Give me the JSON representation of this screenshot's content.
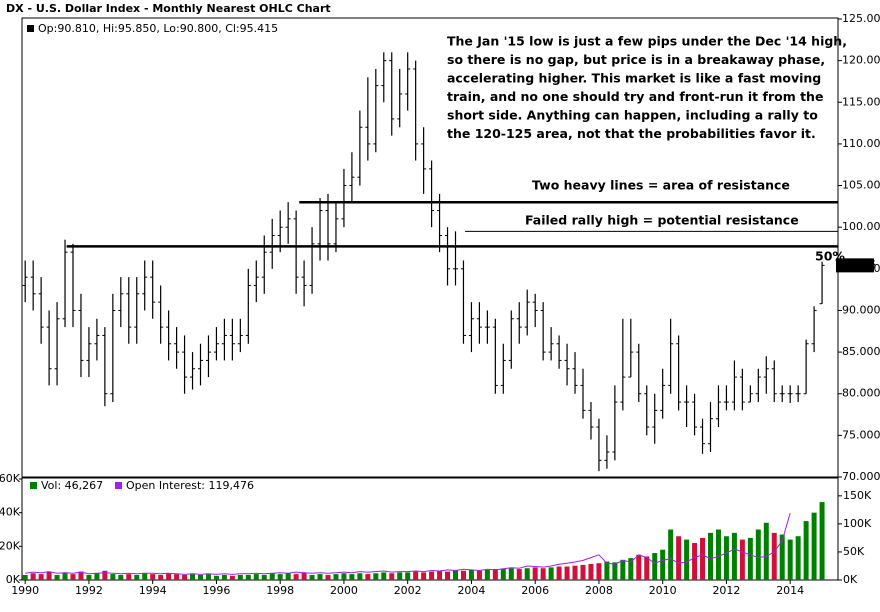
{
  "chart_data": [
    {
      "type": "ohlc",
      "title": "DX - U.S. Dollar Index - Monthly Nearest OHLC Chart",
      "legend": "Op:90.810, Hi:95.850, Lo:90.800, Cl:95.415",
      "color": "#000000",
      "x": [
        1990,
        1990.25,
        1990.5,
        1990.75,
        1991,
        1991.25,
        1991.5,
        1991.75,
        1992,
        1992.25,
        1992.5,
        1992.75,
        1993,
        1993.25,
        1993.5,
        1993.75,
        1994,
        1994.25,
        1994.5,
        1994.75,
        1995,
        1995.25,
        1995.5,
        1995.75,
        1996,
        1996.25,
        1996.5,
        1996.75,
        1997,
        1997.25,
        1997.5,
        1997.75,
        1998,
        1998.25,
        1998.5,
        1998.75,
        1999,
        1999.25,
        1999.5,
        1999.75,
        2000,
        2000.25,
        2000.5,
        2000.75,
        2001,
        2001.25,
        2001.5,
        2001.75,
        2002,
        2002.25,
        2002.5,
        2002.75,
        2003,
        2003.25,
        2003.5,
        2003.75,
        2004,
        2004.25,
        2004.5,
        2004.75,
        2005,
        2005.25,
        2005.5,
        2005.75,
        2006,
        2006.25,
        2006.5,
        2006.75,
        2007,
        2007.25,
        2007.5,
        2007.75,
        2008,
        2008.25,
        2008.5,
        2008.75,
        2009,
        2009.25,
        2009.5,
        2009.75,
        2010,
        2010.25,
        2010.5,
        2010.75,
        2011,
        2011.25,
        2011.5,
        2011.75,
        2012,
        2012.25,
        2012.5,
        2012.75,
        2013,
        2013.25,
        2013.5,
        2013.75,
        2014,
        2014.25,
        2014.5,
        2014.75,
        2015
      ],
      "open": [
        93,
        94,
        92,
        88,
        83,
        89,
        97,
        90,
        84,
        86,
        87,
        80,
        90,
        92,
        88,
        92,
        94,
        91,
        88,
        86,
        85,
        82,
        83,
        84,
        85,
        86,
        87,
        86,
        87,
        93,
        94,
        97,
        99,
        100,
        101,
        94,
        93,
        98,
        102,
        98,
        101,
        105,
        106,
        112,
        110,
        117,
        120,
        113,
        116,
        119,
        110,
        107,
        102,
        99,
        95,
        95,
        87,
        89,
        88,
        88,
        81,
        84,
        89,
        88,
        91,
        90,
        85,
        86,
        84,
        83,
        81,
        78,
        76,
        72,
        73,
        79,
        82,
        85,
        80,
        76,
        78,
        81,
        86,
        79,
        79,
        76,
        74,
        77,
        79,
        79,
        82,
        79,
        80,
        82,
        83,
        80,
        80,
        80,
        80,
        86,
        90.81
      ],
      "high": [
        96,
        96,
        94,
        90,
        91,
        98.5,
        98,
        92,
        88,
        89,
        88,
        92,
        94,
        94,
        94,
        96,
        96,
        93,
        90,
        88,
        87,
        85,
        86,
        87,
        88,
        89,
        89,
        89,
        95,
        96,
        99,
        101,
        102,
        103,
        102,
        96,
        100,
        103.5,
        104,
        103,
        107,
        109,
        114,
        118,
        119,
        121,
        121,
        119,
        121,
        120,
        112,
        108,
        104,
        100,
        99.5,
        96,
        91,
        91,
        90,
        89,
        86,
        90,
        91,
        92.5,
        92,
        91,
        88,
        87,
        86,
        85,
        83,
        79,
        77,
        75,
        81,
        89,
        89,
        86,
        81,
        80,
        83,
        89,
        87,
        81,
        80,
        77,
        79,
        81,
        81,
        84,
        83,
        81,
        83,
        84.5,
        84,
        81,
        81,
        81,
        86.5,
        90.5,
        95.85
      ],
      "low": [
        91,
        90,
        86,
        81,
        81,
        88,
        88,
        82,
        82,
        84,
        78.5,
        79,
        88,
        86,
        86,
        90,
        89,
        86,
        84,
        83,
        80,
        80.5,
        81,
        82,
        84,
        84,
        84,
        85,
        86,
        91,
        92,
        95,
        97,
        98,
        92,
        90.5,
        92,
        96,
        96,
        97,
        100,
        103,
        105,
        108,
        109,
        115,
        111,
        112,
        114,
        108,
        104,
        100,
        97,
        93,
        93,
        86,
        85,
        86,
        86,
        80,
        80,
        83,
        86,
        87,
        88,
        84,
        84,
        83,
        81,
        80,
        77,
        74.5,
        70.7,
        71,
        72,
        78,
        82,
        79,
        75,
        74,
        77,
        80,
        78,
        76,
        75,
        72.8,
        73,
        76,
        78,
        78,
        78,
        79,
        79,
        80,
        79,
        79,
        78.9,
        79,
        80,
        85,
        90.8
      ],
      "close": [
        94,
        92,
        88,
        83,
        89,
        97,
        90,
        84,
        86,
        87,
        80,
        90,
        92,
        88,
        92,
        94,
        91,
        88,
        86,
        85,
        82,
        83,
        84,
        85,
        86,
        87,
        86,
        87,
        93,
        94,
        97,
        99,
        100,
        101,
        94,
        93,
        98,
        102,
        98,
        101,
        105,
        106,
        112,
        110,
        117,
        120,
        113,
        116,
        119,
        110,
        107,
        102,
        99,
        95,
        95,
        87,
        89,
        88,
        88,
        81,
        84,
        89,
        88,
        91,
        90,
        85,
        86,
        84,
        83,
        81,
        78,
        76,
        72,
        73,
        79,
        82,
        85,
        80,
        76,
        78,
        81,
        86,
        79,
        79,
        76,
        74,
        77,
        79,
        79,
        82,
        79,
        80,
        82,
        83,
        80,
        80,
        80,
        80,
        86,
        90,
        95.415
      ],
      "xlim": [
        1989.9,
        2015.5
      ],
      "ylim": [
        70,
        125
      ],
      "yticks": [
        {
          "value": 70,
          "label": "70.000"
        },
        {
          "value": 75,
          "label": "75.000"
        },
        {
          "value": 80,
          "label": "80.000"
        },
        {
          "value": 85,
          "label": "85.000"
        },
        {
          "value": 90,
          "label": "90.000"
        },
        {
          "value": 95,
          "label": "95.000"
        },
        {
          "value": 100,
          "label": "100.000"
        },
        {
          "value": 105,
          "label": "105.000"
        },
        {
          "value": 110,
          "label": "110.000"
        },
        {
          "value": 115,
          "label": "115.000"
        },
        {
          "value": 120,
          "label": "120.000"
        },
        {
          "value": 125,
          "label": "125.000"
        }
      ],
      "lines": [
        {
          "y": 103,
          "x_start": 1998.6,
          "weight": "heavy"
        },
        {
          "y": 97.7,
          "x_start": 1991.3,
          "weight": "heavy"
        },
        {
          "y": 99.5,
          "x_start": 2003.8,
          "weight": "thin"
        }
      ],
      "annotations": {
        "note": [
          "The Jan '15 low is just a few pips under the Dec '14 high,",
          "so there is no gap, but price is in a breakaway phase,",
          "accelerating higher.  This market is like a fast moving",
          "train, and no one should try and front-run it from the",
          "short side.  Anything can happen, including a rally to",
          "the 120-125 area, not that the probabilities favor it."
        ],
        "heavy": "Two heavy lines = area of resistance",
        "failed": "Failed rally high = potential resistance",
        "fib": "50%"
      }
    },
    {
      "type": "volume",
      "series": [
        {
          "name": "Vol: 46,267",
          "color": "#008000",
          "down_color": "#d0103a",
          "values": [
            3000,
            4000,
            3500,
            5000,
            3000,
            4500,
            3500,
            5000,
            3000,
            4000,
            5500,
            3500,
            3000,
            3500,
            3000,
            4000,
            3500,
            3000,
            4000,
            3500,
            3000,
            3500,
            3000,
            3500,
            2500,
            3000,
            2500,
            3000,
            3000,
            3500,
            3000,
            4000,
            3500,
            4000,
            3500,
            4500,
            3000,
            3500,
            3000,
            3500,
            4000,
            3500,
            4000,
            3500,
            4000,
            4500,
            4000,
            4500,
            4500,
            5000,
            4500,
            5000,
            5500,
            5000,
            6000,
            5500,
            6000,
            5500,
            6000,
            6500,
            6500,
            7000,
            6500,
            7000,
            7500,
            7000,
            7500,
            8000,
            8000,
            8500,
            9000,
            9500,
            10000,
            11000,
            10500,
            12000,
            13000,
            15000,
            14000,
            16000,
            18000,
            30000,
            26000,
            24000,
            22000,
            25000,
            28000,
            30000,
            26000,
            28000,
            24000,
            25000,
            30000,
            34000,
            28000,
            27000,
            24000,
            26000,
            35000,
            40000,
            46267
          ]
        },
        {
          "name": "Open Interest: 119,476",
          "color": "#a020f0",
          "axis": "y2",
          "values": [
            12000,
            14000,
            13000,
            15000,
            12000,
            13000,
            12000,
            14000,
            11000,
            12000,
            13000,
            12000,
            11000,
            12000,
            11000,
            12000,
            12000,
            11000,
            12000,
            11000,
            10000,
            11000,
            10000,
            11000,
            10000,
            11000,
            10000,
            11000,
            11000,
            12000,
            11000,
            12000,
            13000,
            12000,
            14000,
            13000,
            12000,
            13000,
            12000,
            13000,
            14000,
            13000,
            15000,
            14000,
            15000,
            16000,
            14000,
            15000,
            15000,
            16000,
            15000,
            17000,
            16000,
            18000,
            17000,
            19000,
            18000,
            17000,
            19000,
            18000,
            20000,
            22000,
            21000,
            25000,
            24000,
            23000,
            25000,
            28000,
            30000,
            32000,
            35000,
            40000,
            45000,
            30000,
            28000,
            35000,
            32000,
            45000,
            40000,
            30000,
            35000,
            38000,
            30000,
            32000,
            40000,
            45000,
            38000,
            42000,
            48000,
            55000,
            50000,
            45000,
            40000,
            42000,
            50000,
            70000,
            119476
          ]
        }
      ],
      "ylim": [
        0,
        60000
      ],
      "yticks": [
        {
          "value": 0,
          "label": "0K"
        },
        {
          "value": 20000,
          "label": "20K"
        },
        {
          "value": 40000,
          "label": "40K"
        },
        {
          "value": 60000,
          "label": "60K"
        }
      ],
      "y2lim": [
        0,
        180000
      ],
      "y2ticks": [
        {
          "value": 0,
          "label": "0K"
        },
        {
          "value": 50000,
          "label": "50K"
        },
        {
          "value": 100000,
          "label": "100K"
        },
        {
          "value": 150000,
          "label": "150K"
        }
      ],
      "xticks": [
        1990,
        1992,
        1994,
        1996,
        1998,
        2000,
        2002,
        2004,
        2006,
        2008,
        2010,
        2012,
        2014
      ]
    }
  ]
}
